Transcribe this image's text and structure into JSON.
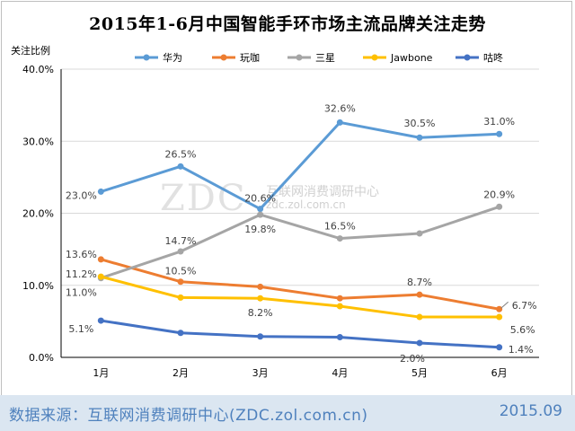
{
  "chart_data": {
    "type": "line",
    "title": "2015年1-6月中国智能手环市场主流品牌关注走势",
    "ylabel": "关注比例",
    "xlabel": "",
    "categories": [
      "1月",
      "2月",
      "3月",
      "4月",
      "5月",
      "6月"
    ],
    "ylim": [
      0,
      40
    ],
    "yticks": [
      "0.0%",
      "10.0%",
      "20.0%",
      "30.0%",
      "40.0%"
    ],
    "legend_position": "top",
    "series": [
      {
        "name": "华为",
        "color": "#5b9bd5",
        "values": [
          23.0,
          26.5,
          20.6,
          32.6,
          30.5,
          31.0
        ],
        "labels": [
          "23.0%",
          "26.5%",
          "20.6%",
          "32.6%",
          "30.5%",
          "31.0%"
        ]
      },
      {
        "name": "玩咖",
        "color": "#ed7d31",
        "values": [
          13.6,
          10.5,
          9.8,
          8.2,
          8.7,
          6.7
        ],
        "labels": [
          "13.6%",
          "10.5%",
          "",
          "",
          "8.7%",
          "6.7%"
        ]
      },
      {
        "name": "三星",
        "color": "#a5a5a5",
        "values": [
          11.0,
          14.7,
          19.8,
          16.5,
          17.2,
          20.9
        ],
        "labels": [
          "11.0%",
          "14.7%",
          "19.8%",
          "16.5%",
          "",
          "20.9%"
        ]
      },
      {
        "name": "Jawbone",
        "color": "#ffc000",
        "values": [
          11.2,
          8.3,
          8.2,
          7.1,
          5.6,
          5.6
        ],
        "labels": [
          "11.2%",
          "",
          "8.2%",
          "",
          "",
          "5.6%"
        ]
      },
      {
        "name": "咕咚",
        "color": "#4472c4",
        "values": [
          5.1,
          3.4,
          2.9,
          2.8,
          2.0,
          1.4
        ],
        "labels": [
          "5.1%",
          "",
          "",
          "",
          "2.0%",
          "1.4%"
        ]
      }
    ]
  },
  "watermark": {
    "main": "ZDC",
    "sub1": "互联网消费调研中心",
    "sub2": "zdc.zol.com.cn"
  },
  "footer": {
    "source": "数据来源：互联网消费调研中心(ZDC.zol.com.cn)",
    "date": "2015.09"
  },
  "colors": {
    "footer_bg": "#dbe6f1",
    "footer_text": "#4f81bd",
    "grid": "#d9d9d9"
  }
}
